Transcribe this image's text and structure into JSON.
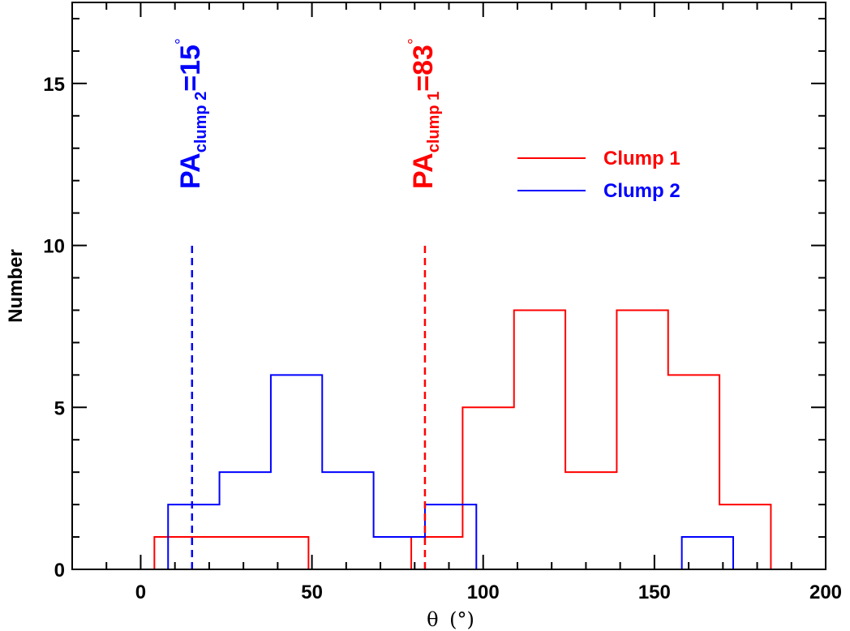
{
  "chart_data": {
    "type": "histogram",
    "xlabel_symbol": "θ",
    "xlabel_unit": "(°)",
    "ylabel": "Number",
    "xlim": [
      -20,
      200
    ],
    "ylim": [
      0,
      17.5
    ],
    "xticks": [
      0,
      50,
      100,
      150,
      200
    ],
    "yticks": [
      0,
      5,
      10,
      15
    ],
    "xtick_labels": [
      "0",
      "50",
      "100",
      "150",
      "200"
    ],
    "ytick_labels": [
      "0",
      "5",
      "10",
      "15"
    ],
    "series": [
      {
        "name": "Clump 1",
        "color": "#ff0000",
        "edges": [
          -20,
          4,
          49,
          79,
          94,
          109,
          124,
          139,
          154,
          169,
          184,
          189,
          200
        ],
        "counts": [
          0,
          1,
          0,
          1,
          5,
          8,
          3,
          8,
          6,
          2,
          0,
          0
        ]
      },
      {
        "name": "Clump 2",
        "color": "#0000ff",
        "edges": [
          -20,
          8,
          23,
          38,
          53,
          68,
          83,
          98,
          158,
          173,
          200
        ],
        "counts": [
          0,
          2,
          3,
          6,
          3,
          1,
          2,
          0,
          1,
          0
        ]
      }
    ],
    "reference_lines": [
      {
        "id": "pa2",
        "x": 15,
        "ymax": 10,
        "color": "#0000ff",
        "label_main": "PA",
        "label_sub": "clump 2",
        "label_eq": "=15",
        "label_sup": "°"
      },
      {
        "id": "pa1",
        "x": 83,
        "ymax": 10,
        "color": "#ff0000",
        "label_main": "PA",
        "label_sub": "clump 1",
        "label_eq": "=83",
        "label_sup": "°"
      }
    ],
    "legend": [
      {
        "label": "Clump 1",
        "color": "#ff0000"
      },
      {
        "label": "Clump 2",
        "color": "#0000ff"
      }
    ]
  }
}
